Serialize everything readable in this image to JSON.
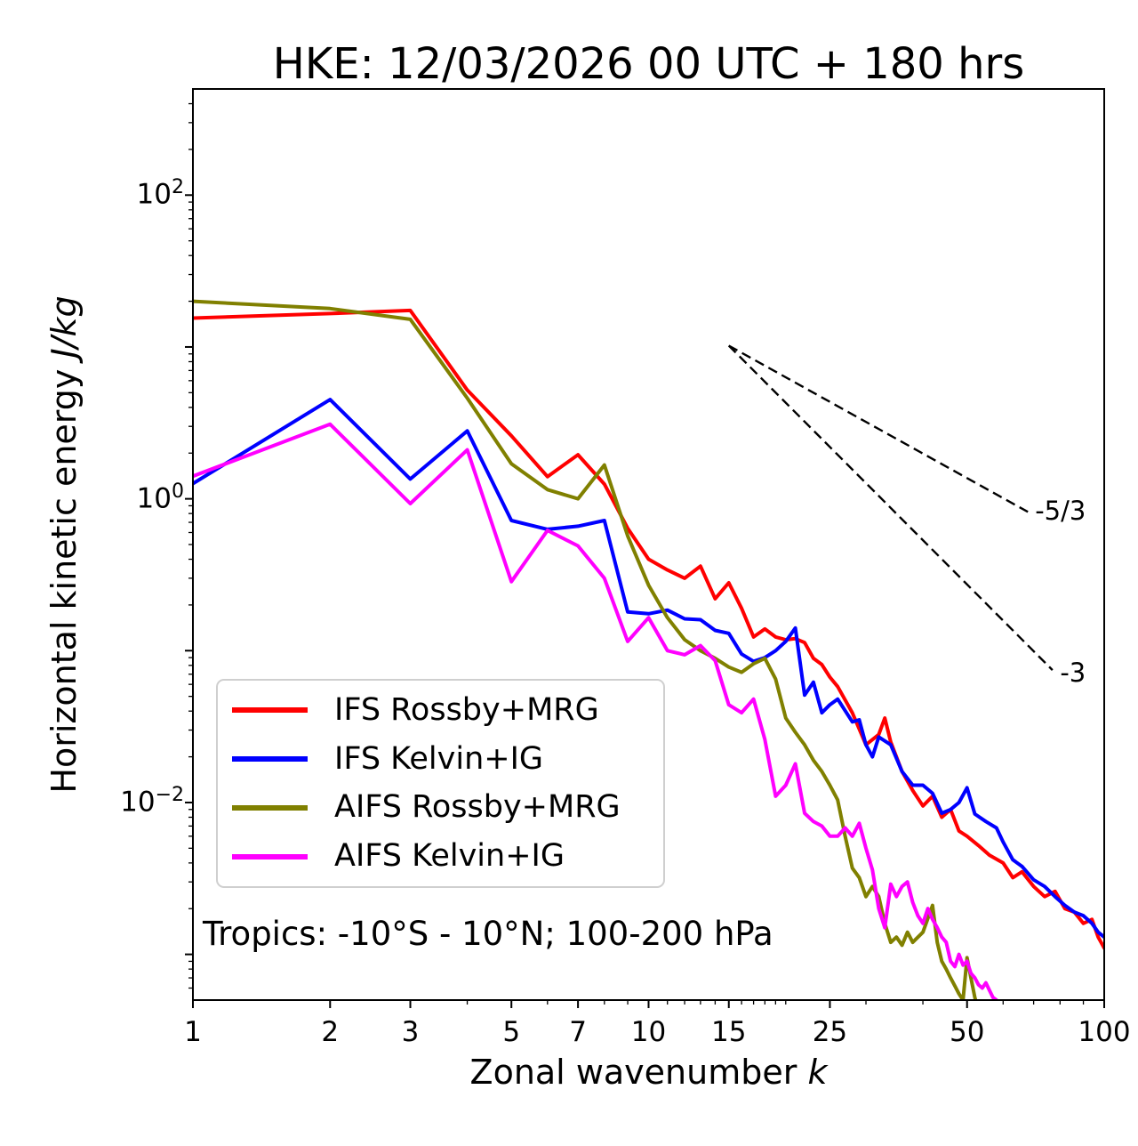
{
  "figure": {
    "title": "HKE: 12/03/2026 00 UTC + 180 hrs",
    "annotation": "Tropics: -10°S - 10°N; 100-200 hPa",
    "background": "#ffffff"
  },
  "axes": {
    "xlabel": {
      "text": "Zonal wavenumber ",
      "math": "k"
    },
    "ylabel": {
      "text": "Horizontal kinetic energy ",
      "math": "J/kg"
    },
    "xscale": "log",
    "yscale": "log",
    "xlim": [
      1,
      100
    ],
    "ylim": [
      0.0005,
      500
    ],
    "x_major_ticks": [
      {
        "v": 1,
        "label": "1"
      },
      {
        "v": 2,
        "label": "2"
      },
      {
        "v": 3,
        "label": "3"
      },
      {
        "v": 5,
        "label": "5"
      },
      {
        "v": 7,
        "label": "7"
      },
      {
        "v": 10,
        "label": "10"
      },
      {
        "v": 15,
        "label": "15"
      },
      {
        "v": 25,
        "label": "25"
      },
      {
        "v": 50,
        "label": "50"
      },
      {
        "v": 100,
        "label": "100"
      }
    ],
    "x_minor_ticks": [
      4,
      6,
      8,
      9,
      11,
      12,
      13,
      14,
      16,
      17,
      18,
      19,
      20,
      30,
      40,
      60,
      70,
      80,
      90
    ],
    "y_labeled_ticks": [
      {
        "value": 100,
        "base": "10",
        "exp": "2"
      },
      {
        "value": 1,
        "base": "10",
        "exp": "0"
      },
      {
        "value": 0.01,
        "base": "10",
        "exp": "−2"
      }
    ],
    "y_decade_ticks": [
      100,
      10,
      1,
      0.1,
      0.01,
      0.001
    ],
    "grid": false
  },
  "reference_lines": [
    {
      "label": "-5/3",
      "k0": 15,
      "v0": 10.2,
      "k1": 68,
      "v1": 0.82,
      "label_k": 70.5,
      "label_v": 0.83,
      "color": "#000000"
    },
    {
      "label": "-3",
      "k0": 15,
      "v0": 10.2,
      "k1": 77,
      "v1": 0.0745,
      "label_k": 80,
      "label_v": 0.0715,
      "color": "#000000"
    }
  ],
  "chart_data": {
    "type": "line",
    "title": "HKE: 12/03/2026 00 UTC + 180 hrs",
    "xlabel": "Zonal wavenumber k",
    "ylabel": "Horizontal kinetic energy J/kg",
    "xscale": "log",
    "yscale": "log",
    "xlim": [
      1,
      100
    ],
    "ylim": [
      0.0005,
      500
    ],
    "legend_position": "lower left",
    "series": [
      {
        "name": "IFS Rossby+MRG",
        "color": "#ff0000",
        "k": [
          1,
          2,
          3,
          4,
          5,
          6,
          7,
          8,
          9,
          10,
          11,
          12,
          13,
          14,
          15,
          16,
          17,
          18,
          19,
          20,
          21,
          22,
          23,
          24,
          25,
          26,
          28,
          30,
          32,
          33,
          34,
          36,
          38,
          40,
          42,
          44,
          46,
          48,
          50,
          53,
          56,
          60,
          63,
          66,
          70,
          74,
          78,
          82,
          86,
          90,
          94,
          97,
          100
        ],
        "v": [
          15.5,
          16.6,
          17.4,
          5.2,
          2.6,
          1.4,
          1.95,
          1.25,
          0.64,
          0.4,
          0.34,
          0.3,
          0.36,
          0.22,
          0.28,
          0.19,
          0.123,
          0.139,
          0.123,
          0.118,
          0.12,
          0.113,
          0.089,
          0.081,
          0.067,
          0.058,
          0.039,
          0.024,
          0.028,
          0.036,
          0.025,
          0.016,
          0.012,
          0.0095,
          0.011,
          0.008,
          0.009,
          0.0065,
          0.006,
          0.0052,
          0.0045,
          0.004,
          0.0032,
          0.0035,
          0.0028,
          0.0024,
          0.0026,
          0.002,
          0.0019,
          0.0016,
          0.0017,
          0.0013,
          0.0011
        ]
      },
      {
        "name": "IFS Kelvin+IG",
        "color": "#0000ff",
        "k": [
          1,
          2,
          3,
          4,
          5,
          6,
          7,
          8,
          9,
          10,
          11,
          12,
          13,
          14,
          15,
          16,
          17,
          18,
          19,
          20,
          21,
          22,
          23,
          24,
          25,
          26,
          28,
          29,
          30,
          31,
          32,
          34,
          36,
          38,
          40,
          42,
          44,
          46,
          48,
          50,
          52,
          55,
          58,
          60,
          63,
          66,
          70,
          74,
          78,
          82,
          86,
          90,
          94,
          97,
          100
        ],
        "v": [
          1.26,
          4.5,
          1.35,
          2.8,
          0.72,
          0.63,
          0.66,
          0.72,
          0.18,
          0.175,
          0.185,
          0.162,
          0.16,
          0.136,
          0.13,
          0.095,
          0.085,
          0.09,
          0.1,
          0.115,
          0.141,
          0.051,
          0.062,
          0.039,
          0.044,
          0.048,
          0.034,
          0.035,
          0.024,
          0.02,
          0.027,
          0.024,
          0.016,
          0.013,
          0.013,
          0.0115,
          0.0085,
          0.009,
          0.01,
          0.0125,
          0.0084,
          0.0075,
          0.0068,
          0.0055,
          0.0042,
          0.0038,
          0.0031,
          0.0028,
          0.0024,
          0.0021,
          0.0019,
          0.0018,
          0.0016,
          0.0014,
          0.0013
        ]
      },
      {
        "name": "AIFS Rossby+MRG",
        "color": "#808000",
        "k": [
          1,
          2,
          3,
          4,
          5,
          6,
          7,
          8,
          9,
          10,
          11,
          12,
          13,
          14,
          15,
          16,
          17,
          18,
          19,
          20,
          21,
          22,
          23,
          24,
          25,
          26,
          27,
          28,
          29,
          30,
          31,
          32,
          33,
          34,
          35,
          36,
          37,
          38,
          40,
          42,
          43,
          44,
          45,
          46,
          47,
          48,
          49,
          50,
          51,
          52,
          53
        ],
        "v": [
          20,
          17.9,
          15.2,
          4.6,
          1.7,
          1.15,
          1.0,
          1.67,
          0.57,
          0.27,
          0.165,
          0.118,
          0.1,
          0.089,
          0.078,
          0.072,
          0.082,
          0.089,
          0.065,
          0.036,
          0.029,
          0.024,
          0.019,
          0.016,
          0.013,
          0.0104,
          0.006,
          0.0037,
          0.0032,
          0.0024,
          0.0028,
          0.0024,
          0.0016,
          0.0012,
          0.0013,
          0.00115,
          0.0014,
          0.0012,
          0.0014,
          0.0021,
          0.0012,
          0.0009,
          0.0008,
          0.0007,
          0.00062,
          0.00055,
          0.0005,
          0.00095,
          0.0007,
          0.00052,
          0.00042
        ]
      },
      {
        "name": "AIFS Kelvin+IG",
        "color": "#ff00ff",
        "k": [
          1,
          2,
          3,
          4,
          5,
          6,
          7,
          8,
          9,
          10,
          11,
          12,
          13,
          14,
          15,
          16,
          17,
          18,
          19,
          20,
          21,
          22,
          23,
          24,
          25,
          26,
          27,
          28,
          29,
          30,
          31,
          32,
          33,
          34,
          35,
          36,
          37,
          38,
          39,
          40,
          41,
          42,
          43,
          44,
          45,
          46,
          47,
          48,
          49,
          50,
          51,
          52,
          53,
          54,
          55,
          56,
          57,
          58,
          59,
          60
        ],
        "v": [
          1.41,
          3.1,
          0.93,
          2.1,
          0.285,
          0.62,
          0.49,
          0.3,
          0.115,
          0.165,
          0.1,
          0.094,
          0.108,
          0.086,
          0.044,
          0.039,
          0.048,
          0.026,
          0.011,
          0.013,
          0.018,
          0.0085,
          0.0075,
          0.007,
          0.006,
          0.006,
          0.0068,
          0.006,
          0.0073,
          0.005,
          0.0036,
          0.002,
          0.0015,
          0.0029,
          0.0024,
          0.0028,
          0.003,
          0.0022,
          0.0018,
          0.0016,
          0.002,
          0.0017,
          0.0015,
          0.0013,
          0.0012,
          0.0009,
          0.00083,
          0.001,
          0.00085,
          0.0009,
          0.00075,
          0.0007,
          0.00063,
          0.0006,
          0.00065,
          0.00058,
          0.00052,
          0.0005,
          0.00046,
          0.00043
        ]
      }
    ]
  }
}
